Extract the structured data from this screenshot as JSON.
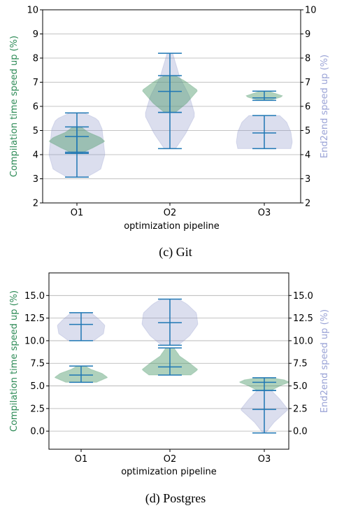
{
  "chart_data": [
    {
      "type": "violin",
      "caption": "(c) Git",
      "xlabel": "optimization pipeline",
      "ylabel_left": "Compilation time speed up (%)",
      "ylabel_right": "End2end speed up (%)",
      "categories": [
        "O1",
        "O2",
        "O3"
      ],
      "ylim": [
        2,
        10
      ],
      "yticks": [
        "2",
        "3",
        "4",
        "5",
        "6",
        "7",
        "8",
        "9",
        "10"
      ],
      "grid": "horizontal",
      "colors": {
        "compile": "#4e9a6b",
        "end2end": "#8891c8",
        "stats": "#1f77b4",
        "left_label": "#2e8b57",
        "right_label": "#9aa3d6"
      },
      "series": [
        {
          "name": "Compilation time speed up (%)",
          "axis": "left",
          "violins": [
            {
              "category": "O1",
              "min": 4.05,
              "median": 4.75,
              "max": 5.15
            },
            {
              "category": "O2",
              "min": 5.75,
              "median": 6.62,
              "max": 7.27
            },
            {
              "category": "O3",
              "min": 6.25,
              "median": 6.35,
              "max": 6.63
            }
          ]
        },
        {
          "name": "End2end speed up (%)",
          "axis": "right",
          "violins": [
            {
              "category": "O1",
              "min": 3.07,
              "median": 4.1,
              "max": 5.73
            },
            {
              "category": "O2",
              "min": 4.25,
              "median": 5.75,
              "max": 8.2
            },
            {
              "category": "O3",
              "min": 4.25,
              "median": 4.9,
              "max": 5.62
            }
          ]
        }
      ]
    },
    {
      "type": "violin",
      "caption": "(d) Postgres",
      "xlabel": "optimization pipeline",
      "ylabel_left": "Compilation time speed up (%)",
      "ylabel_right": "End2end speed up (%)",
      "categories": [
        "O1",
        "O2",
        "O3"
      ],
      "ylim": [
        -2,
        17.5
      ],
      "yticks": [
        "0.0",
        "2.5",
        "5.0",
        "7.5",
        "10.0",
        "12.5",
        "15.0"
      ],
      "grid": "horizontal",
      "colors": {
        "compile": "#4e9a6b",
        "end2end": "#8891c8",
        "stats": "#1f77b4",
        "left_label": "#2e8b57",
        "right_label": "#9aa3d6"
      },
      "series": [
        {
          "name": "Compilation time speed up (%)",
          "axis": "left",
          "violins": [
            {
              "category": "O1",
              "min": 5.4,
              "median": 6.2,
              "max": 7.2
            },
            {
              "category": "O2",
              "min": 6.2,
              "median": 7.1,
              "max": 9.2
            },
            {
              "category": "O3",
              "min": 4.5,
              "median": 5.4,
              "max": 5.9
            }
          ]
        },
        {
          "name": "End2end speed up (%)",
          "axis": "right",
          "violins": [
            {
              "category": "O1",
              "min": 10.0,
              "median": 11.8,
              "max": 13.1
            },
            {
              "category": "O2",
              "min": 9.5,
              "median": 12.0,
              "max": 14.6
            },
            {
              "category": "O3",
              "min": -0.2,
              "median": 2.4,
              "max": 4.5
            }
          ]
        }
      ]
    }
  ]
}
